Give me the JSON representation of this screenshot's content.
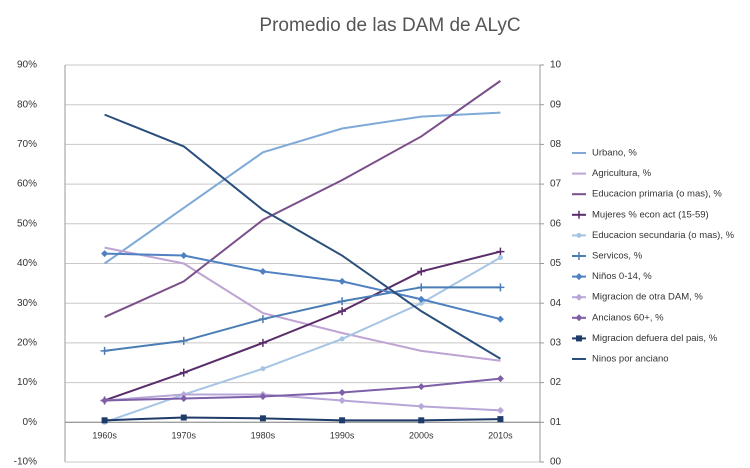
{
  "chart_data": {
    "type": "line",
    "title": "Promedio de las DAM de ALyC",
    "categories": [
      "1960s",
      "1970s",
      "1980s",
      "1990s",
      "2000s",
      "2010s"
    ],
    "ylim": [
      -10,
      90
    ],
    "yticks": [
      {
        "value": -10,
        "label": "-10%"
      },
      {
        "value": 0,
        "label": "0%"
      },
      {
        "value": 10,
        "label": "10%"
      },
      {
        "value": 20,
        "label": "20%"
      },
      {
        "value": 30,
        "label": "30%"
      },
      {
        "value": 40,
        "label": "40%"
      },
      {
        "value": 50,
        "label": "50%"
      },
      {
        "value": 60,
        "label": "60%"
      },
      {
        "value": 70,
        "label": "70%"
      },
      {
        "value": 80,
        "label": "80%"
      },
      {
        "value": 90,
        "label": "90%"
      }
    ],
    "y2lim": [
      0,
      10
    ],
    "y2ticks": [
      {
        "value": 0,
        "label": "00"
      },
      {
        "value": 1,
        "label": "01"
      },
      {
        "value": 2,
        "label": "02"
      },
      {
        "value": 3,
        "label": "03"
      },
      {
        "value": 4,
        "label": "04"
      },
      {
        "value": 5,
        "label": "05"
      },
      {
        "value": 6,
        "label": "06"
      },
      {
        "value": 7,
        "label": "07"
      },
      {
        "value": 8,
        "label": "08"
      },
      {
        "value": 9,
        "label": "09"
      },
      10
    ],
    "grid": true,
    "legend": "right",
    "series": [
      {
        "name": "Urbano, %",
        "color": "#7fa9d8",
        "values": [
          40,
          54,
          68,
          74,
          77,
          78
        ]
      },
      {
        "name": "Agricultura,  %",
        "color": "#bfa3d3",
        "values": [
          44,
          40,
          27.5,
          22.5,
          18,
          15.5
        ]
      },
      {
        "name": "Educacion primaria (o mas), %",
        "color": "#7a4f8a",
        "values": [
          26.5,
          35.5,
          51,
          61,
          72,
          86
        ]
      },
      {
        "name": "Mujeres % econ act (15-59)",
        "color": "#5a2d6a",
        "marker": "plus",
        "values": [
          5.5,
          12.5,
          20,
          28,
          38,
          43
        ]
      },
      {
        "name": "Educacion secundaria (o mas), %",
        "color": "#a6c5e4",
        "marker": "circle",
        "values": [
          0,
          7,
          13.5,
          21,
          30,
          41.5
        ]
      },
      {
        "name": "Servicos, %",
        "color": "#4a7db5",
        "marker": "plus",
        "values": [
          18,
          20.5,
          26,
          30.5,
          34,
          34
        ]
      },
      {
        "name": "Niños 0-14, %",
        "color": "#4f80c2",
        "marker": "diamond",
        "values": [
          42.5,
          42,
          38,
          35.5,
          31,
          26
        ]
      },
      {
        "name": "Migracion de otra DAM, %",
        "color": "#b8a6d8",
        "marker": "diamond",
        "values": [
          5.5,
          7,
          7,
          5.5,
          4,
          3
        ]
      },
      {
        "name": "Ancianos 60+, %",
        "color": "#7e5fa8",
        "marker": "diamond",
        "values": [
          5.5,
          6,
          6.5,
          7.5,
          9,
          11
        ]
      },
      {
        "name": "Migracion defuera del pais, %",
        "color": "#1f3b6a",
        "marker": "square",
        "values": [
          0.5,
          1.2,
          1,
          0.5,
          0.5,
          0.8
        ]
      },
      {
        "name": "Ninos por anciano",
        "color": "#2b4f7c",
        "axis": "y2",
        "values": [
          8.75,
          7.95,
          6.35,
          5.2,
          3.8,
          2.6
        ]
      }
    ]
  }
}
